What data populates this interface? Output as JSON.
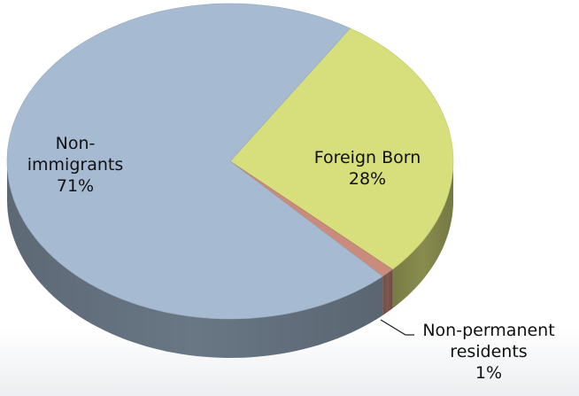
{
  "chart_data": {
    "type": "pie",
    "categories": [
      "Non-immigrants",
      "Foreign Born",
      "Non-permanent residents"
    ],
    "values": [
      71,
      28,
      1
    ],
    "value_labels": [
      "71%",
      "28%",
      "1%"
    ],
    "colors": [
      "#a6bbd2",
      "#d7de7c",
      "#c98b7b"
    ]
  }
}
